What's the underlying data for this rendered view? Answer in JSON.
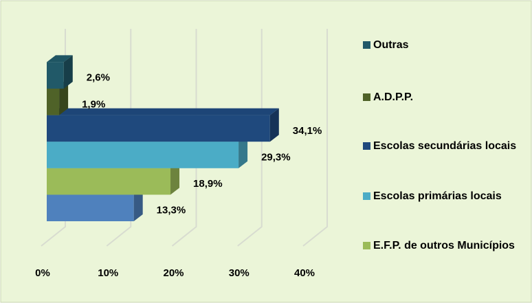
{
  "chart_data": {
    "type": "bar3d_horizontal",
    "series": [
      {
        "name": null,
        "color": "#4f81bd",
        "values": [
          13.3
        ],
        "value_labels": [
          "13,3%"
        ]
      },
      {
        "name": "E.F.P. de outros Municípios",
        "color": "#9bbb59",
        "values": [
          18.9
        ],
        "value_labels": [
          "18,9%"
        ]
      },
      {
        "name": "Escolas primárias locais",
        "color": "#4bacc6",
        "values": [
          29.3
        ],
        "value_labels": [
          "29,3%"
        ]
      },
      {
        "name": "Escolas secundárias locais",
        "color": "#1f497d",
        "values": [
          34.1
        ],
        "value_labels": [
          "34,1%"
        ]
      },
      {
        "name": "A.D.P.P.",
        "color": "#4f6228",
        "values": [
          1.9
        ],
        "value_labels": [
          "1,9%"
        ]
      },
      {
        "name": "Outras",
        "color": "#215968",
        "values": [
          2.6
        ],
        "value_labels": [
          "2,6%"
        ]
      }
    ],
    "xlim": [
      0,
      40
    ],
    "xticks": [
      {
        "value": 0,
        "label": "0%"
      },
      {
        "value": 10,
        "label": "10%"
      },
      {
        "value": 20,
        "label": "20%"
      },
      {
        "value": 30,
        "label": "30%"
      },
      {
        "value": 40,
        "label": "40%"
      }
    ],
    "grid": true,
    "legend": "right"
  }
}
